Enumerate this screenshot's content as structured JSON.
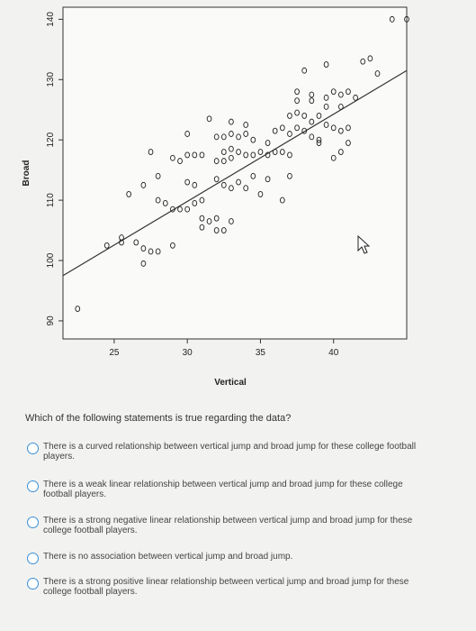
{
  "chart_data": {
    "type": "scatter",
    "xlabel": "Vertical",
    "ylabel": "Broad",
    "xlim": [
      21.5,
      45
    ],
    "ylim": [
      87,
      142
    ],
    "x_ticks": [
      25,
      30,
      35,
      40
    ],
    "x_tick_labels": [
      "25",
      "30",
      "35",
      "40"
    ],
    "y_ticks": [
      90,
      100,
      110,
      120,
      130,
      140
    ],
    "y_tick_labels": [
      "90",
      "100",
      "110",
      "120",
      "130",
      "140"
    ],
    "grid": false,
    "regression_line": [
      [
        21.5,
        97.5
      ],
      [
        45,
        131.5
      ]
    ],
    "points": [
      [
        22.5,
        92
      ],
      [
        24.5,
        102.5
      ],
      [
        25.5,
        103
      ],
      [
        25.5,
        103.8
      ],
      [
        26.5,
        103
      ],
      [
        27,
        102
      ],
      [
        27,
        99.5
      ],
      [
        27.5,
        101.5
      ],
      [
        28,
        101.5
      ],
      [
        29,
        102.5
      ],
      [
        26,
        111
      ],
      [
        27,
        112.5
      ],
      [
        28,
        110
      ],
      [
        28.5,
        109.5
      ],
      [
        29,
        108.5
      ],
      [
        29.5,
        108.5
      ],
      [
        30,
        108.5
      ],
      [
        30.5,
        109.5
      ],
      [
        31,
        110
      ],
      [
        31,
        107
      ],
      [
        31.5,
        106.5
      ],
      [
        32,
        107
      ],
      [
        31,
        105.5
      ],
      [
        32,
        105
      ],
      [
        32.5,
        105
      ],
      [
        33,
        106.5
      ],
      [
        27.5,
        118
      ],
      [
        28,
        114
      ],
      [
        29,
        117
      ],
      [
        29.5,
        116.5
      ],
      [
        30,
        113
      ],
      [
        30.5,
        112.5
      ],
      [
        30,
        117.5
      ],
      [
        30.5,
        117.5
      ],
      [
        31,
        117.5
      ],
      [
        32,
        116.5
      ],
      [
        32.5,
        116.5
      ],
      [
        33,
        117
      ],
      [
        32,
        113.5
      ],
      [
        32.5,
        112.5
      ],
      [
        33,
        112
      ],
      [
        33.5,
        113
      ],
      [
        34,
        112
      ],
      [
        32,
        120.5
      ],
      [
        32.5,
        120.5
      ],
      [
        33,
        121
      ],
      [
        33.5,
        120.5
      ],
      [
        34,
        121
      ],
      [
        34.5,
        120
      ],
      [
        32.5,
        118
      ],
      [
        33,
        118.5
      ],
      [
        33.5,
        118
      ],
      [
        34,
        117.5
      ],
      [
        34.5,
        117.5
      ],
      [
        35,
        118
      ],
      [
        35.5,
        117.5
      ],
      [
        36,
        118
      ],
      [
        36.5,
        118
      ],
      [
        37,
        117.5
      ],
      [
        34.5,
        114
      ],
      [
        35.5,
        113.5
      ],
      [
        37,
        114
      ],
      [
        35,
        111
      ],
      [
        36.5,
        110
      ],
      [
        31.5,
        123.5
      ],
      [
        30,
        121
      ],
      [
        33,
        123
      ],
      [
        34,
        122.5
      ],
      [
        35.5,
        119.5
      ],
      [
        36,
        121.5
      ],
      [
        36.5,
        122
      ],
      [
        37,
        121
      ],
      [
        37.5,
        122
      ],
      [
        38,
        121.5
      ],
      [
        38.5,
        120.5
      ],
      [
        39,
        120
      ],
      [
        37,
        124
      ],
      [
        37.5,
        124.5
      ],
      [
        38,
        124
      ],
      [
        38.5,
        123
      ],
      [
        39,
        124
      ],
      [
        39.5,
        122.5
      ],
      [
        40,
        122
      ],
      [
        37.5,
        126.5
      ],
      [
        38.5,
        126.5
      ],
      [
        39.5,
        125.5
      ],
      [
        40.5,
        125.5
      ],
      [
        37.5,
        128
      ],
      [
        38.5,
        127.5
      ],
      [
        39.5,
        127
      ],
      [
        40,
        128
      ],
      [
        40.5,
        127.5
      ],
      [
        41,
        128
      ],
      [
        41.5,
        127
      ],
      [
        38,
        131.5
      ],
      [
        39.5,
        132.5
      ],
      [
        42,
        133
      ],
      [
        42.5,
        133.5
      ],
      [
        44,
        140
      ],
      [
        45,
        140
      ],
      [
        43,
        131
      ],
      [
        39,
        119.5
      ],
      [
        40.5,
        118
      ],
      [
        41,
        119.5
      ],
      [
        40.5,
        121.5
      ],
      [
        41,
        122
      ],
      [
        40,
        117
      ]
    ]
  },
  "question": {
    "text": "Which of the following statements is true regarding the data?",
    "options": [
      "There is a curved relationship between vertical jump and broad jump for these college football players.",
      "There is a weak linear relationship between vertical jump and broad jump for these college football players.",
      "There is a strong negative linear relationship between vertical jump and broad jump for these college football players.",
      "There is no association between vertical jump and broad jump.",
      "There is a strong positive linear relationship between vertical jump and broad jump for these college football players."
    ]
  }
}
